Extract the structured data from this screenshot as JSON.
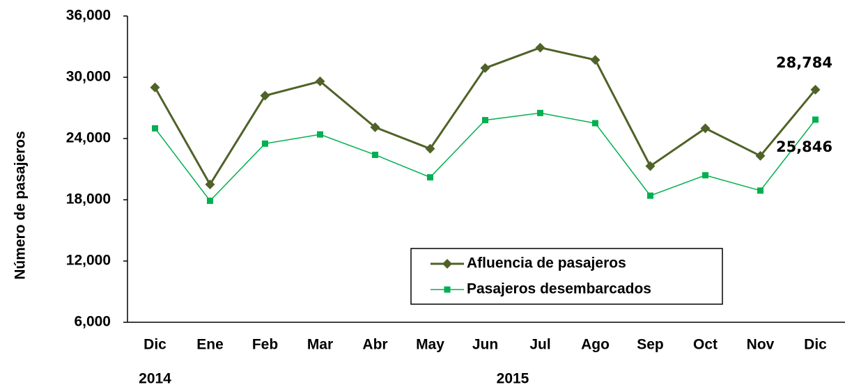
{
  "chart_data": {
    "type": "line",
    "y_label": "Número de pasajeros",
    "categories": [
      "Dic",
      "Ene",
      "Feb",
      "Mar",
      "Abr",
      "May",
      "Jun",
      "Jul",
      "Ago",
      "Sep",
      "Oct",
      "Nov",
      "Dic"
    ],
    "year_labels": [
      "2014",
      "2015"
    ],
    "series": [
      {
        "name": "Afluencia de pasajeros",
        "color": "#4f6228",
        "marker": "diamond",
        "values": [
          29000,
          19500,
          28200,
          29600,
          25100,
          23000,
          30900,
          32900,
          31700,
          21300,
          25000,
          22300,
          28784
        ],
        "value_labels": [
          null,
          null,
          null,
          null,
          null,
          null,
          null,
          null,
          null,
          null,
          null,
          null,
          "28,784"
        ]
      },
      {
        "name": "Pasajeros desembarcados",
        "color": "#00b050",
        "marker": "square",
        "values": [
          25000,
          17900,
          23500,
          24400,
          22400,
          20200,
          25800,
          26500,
          25500,
          18400,
          20400,
          18900,
          25846
        ],
        "value_labels": [
          null,
          null,
          null,
          null,
          null,
          null,
          null,
          null,
          null,
          null,
          null,
          null,
          "25,846"
        ]
      }
    ],
    "ylim": [
      6000,
      36000
    ],
    "yticks": [
      {
        "value": 6000,
        "label": "6,000"
      },
      {
        "value": 12000,
        "label": "12,000"
      },
      {
        "value": 18000,
        "label": "18,000"
      },
      {
        "value": 24000,
        "label": "24,000"
      },
      {
        "value": 30000,
        "label": "30,000"
      },
      {
        "value": 36000,
        "label": "36,000"
      }
    ],
    "grid": false
  }
}
